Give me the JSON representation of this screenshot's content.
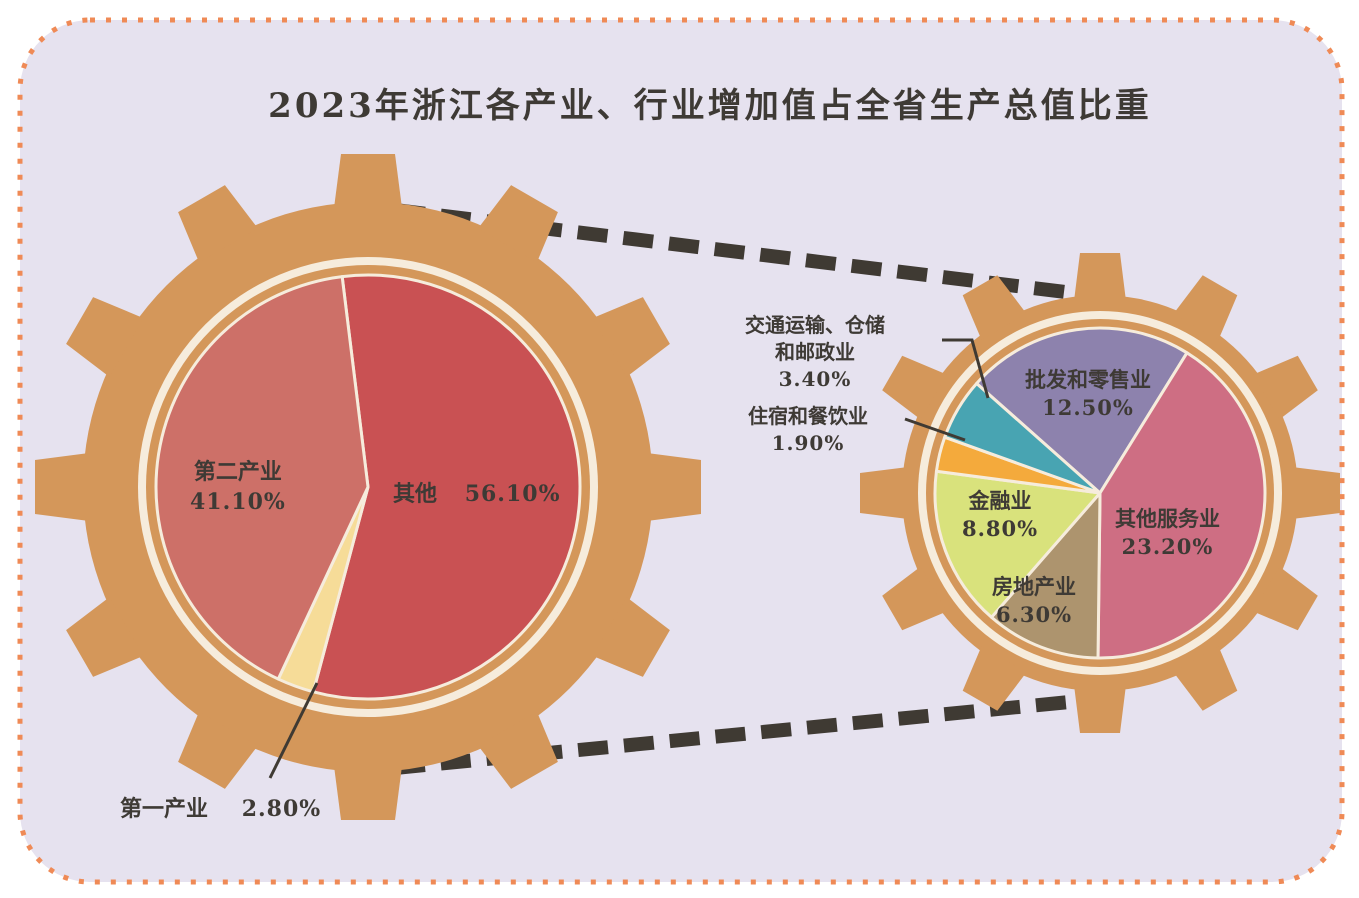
{
  "title": "2023年浙江各产业、行业增加值占全省生产总值比重",
  "colors": {
    "background": "#e6e2ef",
    "border_dots": "#ef8a56",
    "gear": "#d4975a",
    "ring": "#f6ecdc",
    "connector": "#3f3a33",
    "label": "#3e3a35"
  },
  "chart_data": [
    {
      "type": "pie",
      "title": "",
      "slices": [
        {
          "name": "其他",
          "value": 56.1,
          "label": "56.10%",
          "color": "#c95153"
        },
        {
          "name": "第一产业",
          "value": 2.8,
          "label": "2.80%",
          "color": "#f6dc98"
        },
        {
          "name": "第二产业",
          "value": 41.1,
          "label": "41.10%",
          "color": "#cd7068"
        }
      ]
    },
    {
      "type": "pie",
      "title": "",
      "slices": [
        {
          "name": "批发和零售业",
          "value": 12.5,
          "label": "12.50%",
          "color": "#8d82ad"
        },
        {
          "name": "其他服务业",
          "value": 23.2,
          "label": "23.20%",
          "color": "#ce6e83"
        },
        {
          "name": "房地产业",
          "value": 6.3,
          "label": "6.30%",
          "color": "#ad946e"
        },
        {
          "name": "金融业",
          "value": 8.8,
          "label": "8.80%",
          "color": "#d9e27c"
        },
        {
          "name": "住宿和餐饮业",
          "value": 1.9,
          "label": "1.90%",
          "color": "#f4aa3c"
        },
        {
          "name": "交通运输、仓储和邮政业",
          "name_line1": "交通运输、仓储",
          "name_line2": "和邮政业",
          "value": 3.4,
          "label": "3.40%",
          "color": "#48a4b2"
        }
      ]
    }
  ]
}
